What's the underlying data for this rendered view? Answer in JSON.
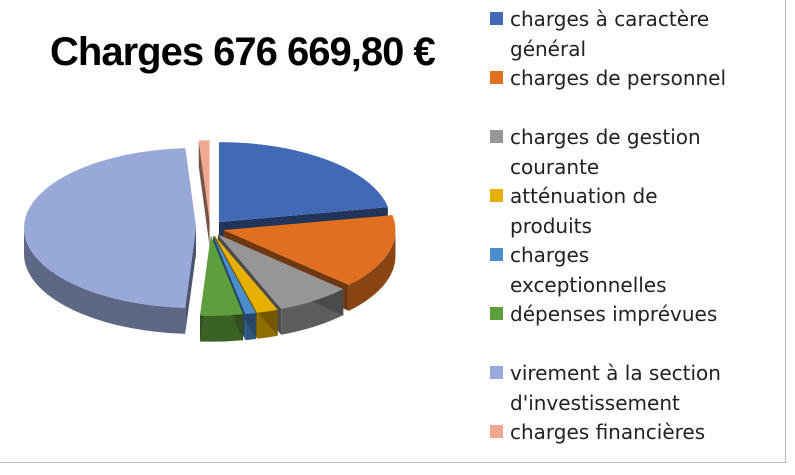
{
  "chart_data": {
    "type": "pie",
    "title": "Charges 676 669,80 €",
    "categories": [
      "charges à caractère général",
      "charges de personnel",
      "charges de gestion courante",
      "atténuation de produits",
      "charges exceptionnelles",
      "dépenses imprévues",
      "virement à la section d'investissement",
      "charges financières"
    ],
    "values": [
      22,
      15,
      7,
      2,
      1,
      4,
      48,
      1
    ],
    "colors": [
      "#4169b5",
      "#e07020",
      "#969696",
      "#e6b000",
      "#4a8ccc",
      "#5e9e3c",
      "#98a8d8",
      "#f0a890"
    ]
  }
}
